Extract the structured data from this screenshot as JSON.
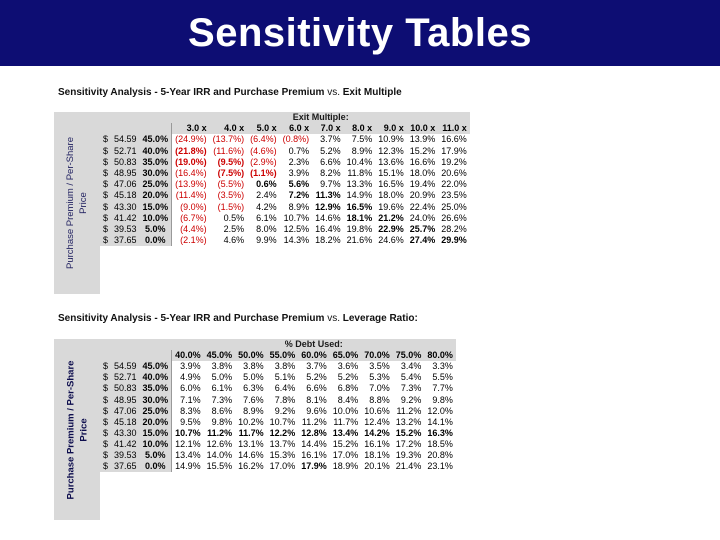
{
  "slide": {
    "title": "Sensitivity Tables"
  },
  "table1": {
    "title_parts": [
      "Sensitivity Analysis - 5-Year IRR and ",
      "Purchase Premium",
      " vs. ",
      "Exit Multiple"
    ],
    "side_label_line1": "Purchase Premium / Per-Share",
    "side_label_line2": "Price",
    "header": "Exit Multiple:",
    "columns": [
      "3.0 x",
      "4.0 x",
      "5.0 x",
      "6.0 x",
      "7.0 x",
      "8.0 x",
      "9.0 x",
      "10.0 x",
      "11.0 x"
    ],
    "rows": [
      {
        "dollar": "$",
        "price": "54.59",
        "premium": "45.0%",
        "values": [
          "(24.9%)",
          "(13.7%)",
          "(6.4%)",
          "(0.8%)",
          "3.7%",
          "7.5%",
          "10.9%",
          "13.9%",
          "16.6%"
        ]
      },
      {
        "dollar": "$",
        "price": "52.71",
        "premium": "40.0%",
        "values": [
          "(21.8%)",
          "(11.6%)",
          "(4.6%)",
          "0.7%",
          "5.2%",
          "8.9%",
          "12.3%",
          "15.2%",
          "17.9%"
        ]
      },
      {
        "dollar": "$",
        "price": "50.83",
        "premium": "35.0%",
        "values": [
          "(19.0%)",
          "(9.5%)",
          "(2.9%)",
          "2.3%",
          "6.6%",
          "10.4%",
          "13.6%",
          "16.6%",
          "19.2%"
        ]
      },
      {
        "dollar": "$",
        "price": "48.95",
        "premium": "30.0%",
        "values": [
          "(16.4%)",
          "(7.5%)",
          "(1.1%)",
          "3.9%",
          "8.2%",
          "11.8%",
          "15.1%",
          "18.0%",
          "20.6%"
        ]
      },
      {
        "dollar": "$",
        "price": "47.06",
        "premium": "25.0%",
        "values": [
          "(13.9%)",
          "(5.5%)",
          "0.6%",
          "5.6%",
          "9.7%",
          "13.3%",
          "16.5%",
          "19.4%",
          "22.0%"
        ]
      },
      {
        "dollar": "$",
        "price": "45.18",
        "premium": "20.0%",
        "values": [
          "(11.4%)",
          "(3.5%)",
          "2.4%",
          "7.2%",
          "11.3%",
          "14.9%",
          "18.0%",
          "20.9%",
          "23.5%"
        ]
      },
      {
        "dollar": "$",
        "price": "43.30",
        "premium": "15.0%",
        "values": [
          "(9.0%)",
          "(1.5%)",
          "4.2%",
          "8.9%",
          "12.9%",
          "16.5%",
          "19.6%",
          "22.4%",
          "25.0%"
        ]
      },
      {
        "dollar": "$",
        "price": "41.42",
        "premium": "10.0%",
        "values": [
          "(6.7%)",
          "0.5%",
          "6.1%",
          "10.7%",
          "14.6%",
          "18.1%",
          "21.2%",
          "24.0%",
          "26.6%"
        ]
      },
      {
        "dollar": "$",
        "price": "39.53",
        "premium": "5.0%",
        "values": [
          "(4.4%)",
          "2.5%",
          "8.0%",
          "12.5%",
          "16.4%",
          "19.8%",
          "22.9%",
          "25.7%",
          "28.2%"
        ]
      },
      {
        "dollar": "$",
        "price": "37.65",
        "premium": "0.0%",
        "values": [
          "(2.1%)",
          "4.6%",
          "9.9%",
          "14.3%",
          "18.2%",
          "21.6%",
          "24.6%",
          "27.4%",
          "29.9%"
        ]
      }
    ]
  },
  "table2": {
    "title_parts": [
      "Sensitivity Analysis - 5-Year IRR and ",
      "Purchase Premium",
      " vs. ",
      "Leverage Ratio:"
    ],
    "side_label_line1": "Purchase Premium / Per-Share",
    "side_label_line2": "Price",
    "header": "% Debt Used:",
    "columns": [
      "40.0%",
      "45.0%",
      "50.0%",
      "55.0%",
      "60.0%",
      "65.0%",
      "70.0%",
      "75.0%",
      "80.0%"
    ],
    "rows": [
      {
        "dollar": "$",
        "price": "54.59",
        "premium": "45.0%",
        "values": [
          "3.9%",
          "3.8%",
          "3.8%",
          "3.8%",
          "3.7%",
          "3.6%",
          "3.5%",
          "3.4%",
          "3.3%"
        ]
      },
      {
        "dollar": "$",
        "price": "52.71",
        "premium": "40.0%",
        "values": [
          "4.9%",
          "5.0%",
          "5.0%",
          "5.1%",
          "5.2%",
          "5.2%",
          "5.3%",
          "5.4%",
          "5.5%"
        ]
      },
      {
        "dollar": "$",
        "price": "50.83",
        "premium": "35.0%",
        "values": [
          "6.0%",
          "6.1%",
          "6.3%",
          "6.4%",
          "6.6%",
          "6.8%",
          "7.0%",
          "7.3%",
          "7.7%"
        ]
      },
      {
        "dollar": "$",
        "price": "48.95",
        "premium": "30.0%",
        "values": [
          "7.1%",
          "7.3%",
          "7.6%",
          "7.8%",
          "8.1%",
          "8.4%",
          "8.8%",
          "9.2%",
          "9.8%"
        ]
      },
      {
        "dollar": "$",
        "price": "47.06",
        "premium": "25.0%",
        "values": [
          "8.3%",
          "8.6%",
          "8.9%",
          "9.2%",
          "9.6%",
          "10.0%",
          "10.6%",
          "11.2%",
          "12.0%"
        ]
      },
      {
        "dollar": "$",
        "price": "45.18",
        "premium": "20.0%",
        "values": [
          "9.5%",
          "9.8%",
          "10.2%",
          "10.7%",
          "11.2%",
          "11.7%",
          "12.4%",
          "13.2%",
          "14.1%"
        ]
      },
      {
        "dollar": "$",
        "price": "43.30",
        "premium": "15.0%",
        "values": [
          "10.7%",
          "11.2%",
          "11.7%",
          "12.2%",
          "12.8%",
          "13.4%",
          "14.2%",
          "15.2%",
          "16.3%"
        ]
      },
      {
        "dollar": "$",
        "price": "41.42",
        "premium": "10.0%",
        "values": [
          "12.1%",
          "12.6%",
          "13.1%",
          "13.7%",
          "14.4%",
          "15.2%",
          "16.1%",
          "17.2%",
          "18.5%"
        ]
      },
      {
        "dollar": "$",
        "price": "39.53",
        "premium": "5.0%",
        "values": [
          "13.4%",
          "14.0%",
          "14.6%",
          "15.3%",
          "16.1%",
          "17.0%",
          "18.1%",
          "19.3%",
          "20.8%"
        ]
      },
      {
        "dollar": "$",
        "price": "37.65",
        "premium": "0.0%",
        "values": [
          "14.9%",
          "15.5%",
          "16.2%",
          "17.0%",
          "17.9%",
          "18.9%",
          "20.1%",
          "21.4%",
          "23.1%"
        ]
      }
    ]
  },
  "colors": {
    "title_bar": "#0d0d73",
    "negative": "#cc0000",
    "header_fill": "#d9d9d9"
  }
}
